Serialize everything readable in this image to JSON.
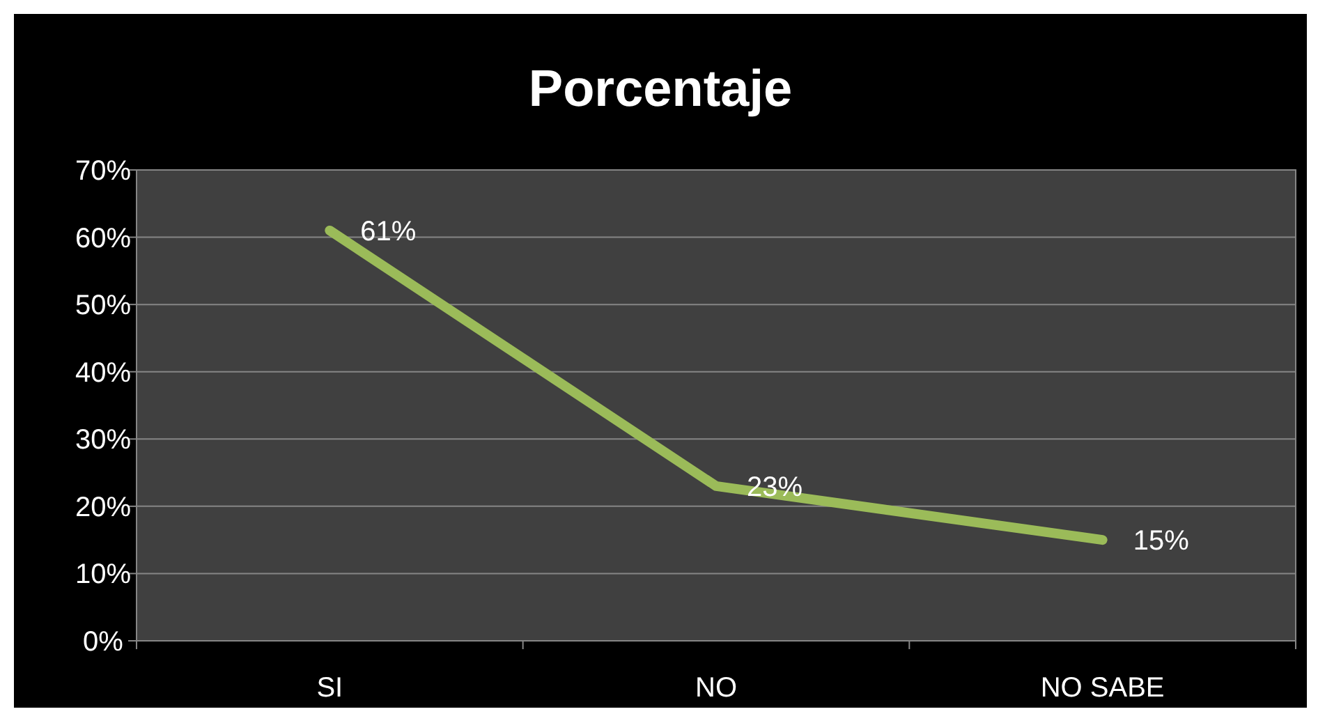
{
  "chart_data": {
    "type": "line",
    "title": "Porcentaje",
    "categories": [
      "SI",
      "NO",
      "NO SABE"
    ],
    "series": [
      {
        "color": "#9bbb59",
        "values": [
          61,
          23,
          15
        ],
        "value_labels": [
          "61%",
          "23%",
          "15%"
        ]
      }
    ],
    "ylim": [
      0,
      70
    ],
    "yticks": [
      {
        "value": 0,
        "label": "0%"
      },
      {
        "value": 10,
        "label": "10%"
      },
      {
        "value": 20,
        "label": "20%"
      },
      {
        "value": 30,
        "label": "30%"
      },
      {
        "value": 40,
        "label": "40%"
      },
      {
        "value": 50,
        "label": "50%"
      },
      {
        "value": 60,
        "label": "60%"
      },
      {
        "value": 70,
        "label": "70%"
      }
    ],
    "grid": "y",
    "marker": "none",
    "line_style": "solid"
  }
}
